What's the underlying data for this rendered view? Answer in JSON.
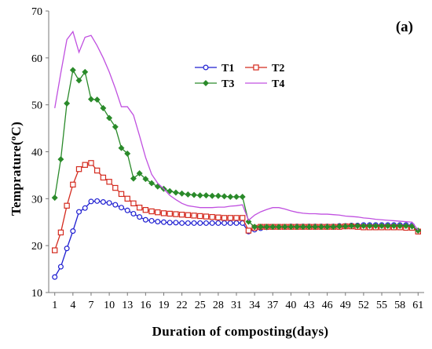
{
  "chart_data": {
    "type": "line",
    "panel_label": "(a)",
    "xlabel": "Duration of composting(days)",
    "ylabel": "Temprature( °C)",
    "ylabel_parts": {
      "prefix": "Temprature(",
      "superscript": "o",
      "suffix": "C)"
    },
    "xlim": [
      0,
      62
    ],
    "ylim": [
      10,
      70
    ],
    "xticks": [
      1,
      4,
      7,
      10,
      13,
      16,
      19,
      22,
      25,
      28,
      31,
      34,
      37,
      40,
      43,
      46,
      49,
      52,
      55,
      58,
      61
    ],
    "yticks": [
      10,
      20,
      30,
      40,
      50,
      60,
      70
    ],
    "grid": false,
    "legend_position": "top-center",
    "x": [
      1,
      2,
      3,
      4,
      5,
      6,
      7,
      8,
      9,
      10,
      11,
      12,
      13,
      14,
      15,
      16,
      17,
      18,
      19,
      20,
      21,
      22,
      23,
      24,
      25,
      26,
      27,
      28,
      29,
      30,
      31,
      32,
      33,
      34,
      35,
      36,
      37,
      38,
      39,
      40,
      41,
      42,
      43,
      44,
      45,
      46,
      47,
      48,
      49,
      50,
      51,
      52,
      53,
      54,
      55,
      56,
      57,
      58,
      59,
      60,
      61
    ],
    "series": [
      {
        "name": "T1",
        "color": "#1f1fd1",
        "marker": "circle",
        "values": [
          13.3,
          15.5,
          19.4,
          23.1,
          27.2,
          28.0,
          29.4,
          29.5,
          29.3,
          29.1,
          28.7,
          28.1,
          27.5,
          26.8,
          26.1,
          25.5,
          25.3,
          25.1,
          25.0,
          24.9,
          24.9,
          24.8,
          24.8,
          24.8,
          24.8,
          24.8,
          24.8,
          24.8,
          24.8,
          24.8,
          24.8,
          24.8,
          23.0,
          23.4,
          23.7,
          23.9,
          24.0,
          24.0,
          24.0,
          24.1,
          24.1,
          24.1,
          24.1,
          24.1,
          24.1,
          24.1,
          24.1,
          24.2,
          24.2,
          24.3,
          24.3,
          24.4,
          24.4,
          24.4,
          24.4,
          24.4,
          24.4,
          24.4,
          24.4,
          24.3,
          23.0
        ]
      },
      {
        "name": "T2",
        "color": "#d42b1f",
        "marker": "square",
        "values": [
          19.0,
          22.8,
          28.5,
          33.0,
          36.3,
          37.2,
          37.6,
          36.0,
          34.5,
          33.6,
          32.3,
          31.0,
          30.0,
          29.0,
          28.1,
          27.6,
          27.3,
          27.1,
          26.9,
          26.8,
          26.7,
          26.6,
          26.5,
          26.4,
          26.3,
          26.2,
          26.1,
          26.0,
          25.9,
          25.9,
          25.9,
          25.9,
          23.2,
          23.8,
          24.0,
          24.0,
          24.0,
          24.0,
          24.0,
          24.0,
          24.0,
          24.0,
          24.0,
          24.0,
          24.0,
          24.0,
          24.0,
          24.0,
          24.1,
          24.1,
          24.0,
          23.9,
          23.9,
          23.9,
          23.9,
          23.9,
          23.9,
          23.9,
          23.8,
          23.8,
          23.0
        ]
      },
      {
        "name": "T3",
        "color": "#2a8a2a",
        "marker": "diamond",
        "values": [
          30.2,
          38.4,
          50.3,
          57.4,
          55.2,
          57.0,
          51.2,
          51.1,
          49.3,
          47.2,
          45.3,
          40.8,
          39.6,
          34.3,
          35.4,
          34.2,
          33.3,
          32.6,
          32.1,
          31.6,
          31.3,
          31.1,
          30.9,
          30.8,
          30.7,
          30.7,
          30.6,
          30.6,
          30.5,
          30.4,
          30.4,
          30.4,
          25.1,
          24.0,
          24.0,
          24.0,
          24.0,
          24.0,
          24.0,
          24.0,
          24.0,
          24.0,
          24.0,
          24.0,
          24.0,
          24.0,
          24.0,
          24.1,
          24.1,
          24.2,
          24.2,
          24.2,
          24.2,
          24.2,
          24.2,
          24.2,
          24.2,
          24.2,
          24.2,
          24.1,
          23.2
        ]
      },
      {
        "name": "T4",
        "color": "#c050e0",
        "marker": "none",
        "values": [
          49.3,
          56.8,
          63.9,
          65.6,
          61.2,
          64.4,
          64.8,
          62.6,
          60.0,
          57.0,
          53.5,
          49.6,
          49.6,
          47.8,
          43.4,
          38.8,
          35.2,
          33.3,
          32.1,
          30.7,
          29.8,
          29.0,
          28.5,
          28.3,
          28.1,
          28.1,
          28.1,
          28.2,
          28.2,
          28.4,
          28.5,
          28.7,
          25.4,
          26.5,
          27.2,
          27.7,
          28.1,
          28.1,
          27.8,
          27.4,
          27.1,
          26.9,
          26.8,
          26.8,
          26.7,
          26.7,
          26.6,
          26.5,
          26.3,
          26.2,
          26.1,
          25.9,
          25.8,
          25.6,
          25.5,
          25.4,
          25.3,
          25.2,
          25.1,
          25.0,
          23.3
        ]
      }
    ]
  }
}
